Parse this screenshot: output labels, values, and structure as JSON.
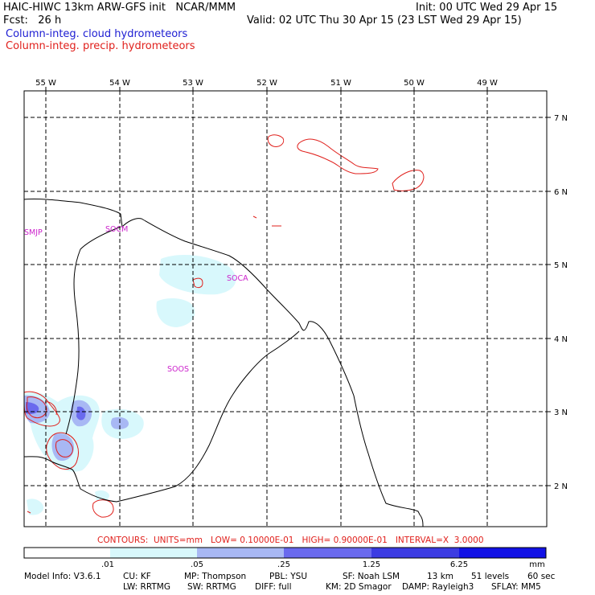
{
  "header": {
    "line1_left": "HAIC-HIWC 13km ARW-GFS init   NCAR/MMM",
    "line1_right": "Init: 00 UTC Wed 29 Apr 15",
    "fcst": "Fcst:   26 h",
    "valid": "Valid: 02 UTC Thu 30 Apr 15 (23 LST Wed 29 Apr 15)",
    "field1": "Column-integ. cloud hydrometeors",
    "field2": "Column-integ. precip. hydrometeors"
  },
  "map": {
    "lon_labels": [
      "55 W",
      "54 W",
      "53 W",
      "52 W",
      "51 W",
      "50 W",
      "49 W"
    ],
    "lat_labels": [
      "7 N",
      "6 N",
      "5 N",
      "4 N",
      "3 N",
      "2 N"
    ],
    "stations": [
      "SMJP",
      "SOCM",
      "SOCA",
      "SOOS"
    ]
  },
  "contours_info": "CONTOURS:  UNITS=mm   LOW= 0.10000E-01   HIGH= 0.90000E-01   INTERVAL=X  3.0000",
  "colorbar": {
    "ticks": [
      ".01",
      ".05",
      ".25",
      "1.25",
      "6.25"
    ],
    "unit": "mm",
    "colors": [
      "#ffffff",
      "#d8f8fc",
      "#a8b8f4",
      "#6a6aee",
      "#3c3ce2",
      "#1212e6"
    ]
  },
  "model_info": {
    "line1": [
      "Model Info: V3.6.1",
      "CU: KF",
      "MP: Thompson",
      "PBL: YSU",
      "SF: Noah LSM",
      "13 km",
      "51 levels",
      "60 sec"
    ],
    "line2": [
      "LW: RRTMG",
      "SW: RRTMG",
      "DIFF: full",
      "KM: 2D Smagor",
      "DAMP: Rayleigh3",
      "SFLAY: MM5"
    ]
  },
  "colors": {
    "cloud": "#1c1cd2",
    "precip": "#e0201c",
    "station": "#cc22cc"
  }
}
